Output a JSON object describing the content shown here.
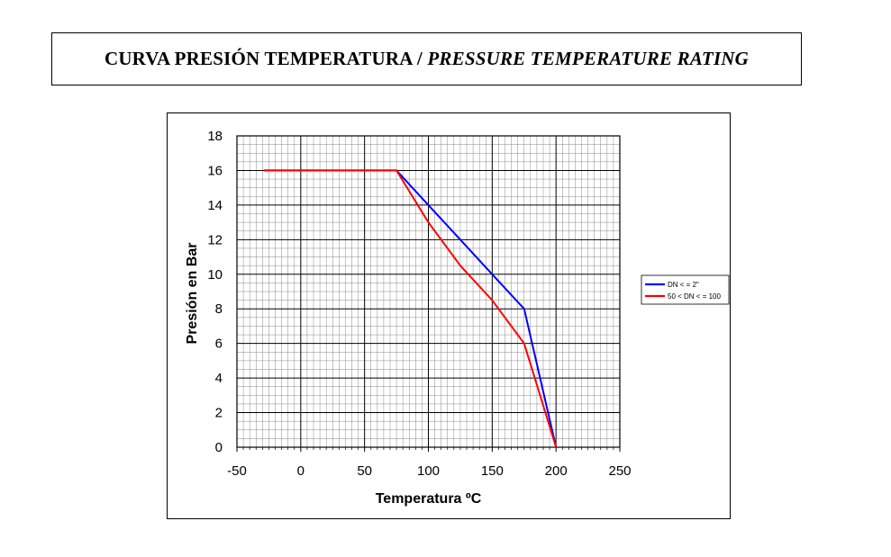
{
  "title": {
    "spanish": "CURVA PRESIÓN TEMPERATURA / ",
    "english": "PRESSURE TEMPERATURE RATING"
  },
  "chart_data": {
    "type": "line",
    "xlabel": "Temperatura ºC",
    "ylabel": "Presión en Bar",
    "xlim": [
      -50,
      250
    ],
    "ylim": [
      0,
      18
    ],
    "x_ticks": [
      "-50",
      "0",
      "50",
      "100",
      "150",
      "200",
      "250"
    ],
    "y_ticks": [
      "0",
      "2",
      "4",
      "6",
      "8",
      "10",
      "12",
      "14",
      "16",
      "18"
    ],
    "x_tick_values": [
      -50,
      0,
      50,
      100,
      150,
      200,
      250
    ],
    "y_tick_values": [
      0,
      2,
      4,
      6,
      8,
      10,
      12,
      14,
      16,
      18
    ],
    "grid": true,
    "legend_position": "right",
    "series": [
      {
        "name": "DN < = 2\"",
        "color": "#0000ff",
        "points": [
          [
            -29,
            16
          ],
          [
            75,
            16
          ],
          [
            100,
            14
          ],
          [
            125,
            12
          ],
          [
            150,
            10
          ],
          [
            175,
            8
          ],
          [
            200,
            0
          ]
        ]
      },
      {
        "name": "50 < DN < = 100",
        "color": "#ff0000",
        "points": [
          [
            -29,
            16
          ],
          [
            75,
            16
          ],
          [
            100,
            13
          ],
          [
            125,
            10.5
          ],
          [
            150,
            8.5
          ],
          [
            175,
            6
          ],
          [
            200,
            0
          ]
        ]
      }
    ]
  }
}
